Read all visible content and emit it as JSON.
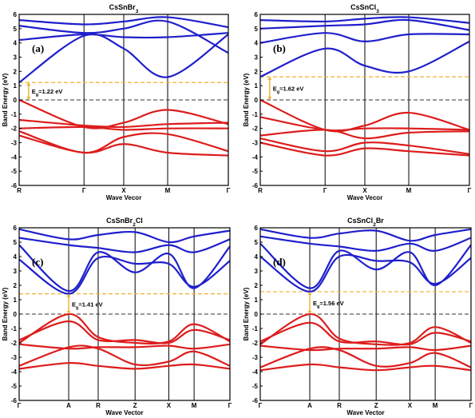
{
  "chart_data": [
    {
      "type": "line",
      "title": "CsSnBr3",
      "panel_label": "(a)",
      "xlabel": "Wave Vecor",
      "ylabel": "Band Energy (eV)",
      "ylim": [
        -6,
        6
      ],
      "yticks": [
        -6,
        -5,
        -4,
        -3,
        -2,
        -1,
        0,
        1,
        2,
        3,
        4,
        5,
        6
      ],
      "kpoints": [
        "R",
        "Γ",
        "X",
        "M",
        "Γ"
      ],
      "kpos": [
        0,
        0.31,
        0.5,
        0.71,
        1
      ],
      "fermi_level": 0,
      "cbm_level": 1.22,
      "gap_label": "Eg=1.22 eV",
      "colors": {
        "conduction": "#1f1fcc",
        "valence": "#dd1c1c",
        "gap_line": "#f0b030"
      },
      "series": [
        {
          "band": "conduction",
          "x": [
            0,
            0.31,
            0.5,
            0.71,
            1
          ],
          "y": [
            1.22,
            4.5,
            3.6,
            1.6,
            4.6
          ]
        },
        {
          "band": "conduction",
          "x": [
            0,
            0.31,
            0.5,
            0.71,
            1
          ],
          "y": [
            4.2,
            4.6,
            4.4,
            4.4,
            4.7
          ]
        },
        {
          "band": "conduction",
          "x": [
            0,
            0.31,
            0.5,
            0.71,
            1
          ],
          "y": [
            5.2,
            4.7,
            5.0,
            5.5,
            3.3
          ]
        },
        {
          "band": "conduction",
          "x": [
            0,
            0.31,
            0.5,
            0.71,
            1
          ],
          "y": [
            5.6,
            5.3,
            5.5,
            5.8,
            5.1
          ]
        },
        {
          "band": "valence",
          "x": [
            0,
            0.31,
            0.5,
            0.71,
            1
          ],
          "y": [
            0.0,
            -1.9,
            -1.6,
            -0.7,
            -1.7
          ]
        },
        {
          "band": "valence",
          "x": [
            0,
            0.31,
            0.5,
            0.71,
            1
          ],
          "y": [
            -1.4,
            -1.8,
            -1.9,
            -1.7,
            -1.6
          ]
        },
        {
          "band": "valence",
          "x": [
            0,
            0.31,
            0.5,
            0.71,
            1
          ],
          "y": [
            -2.0,
            -1.9,
            -2.1,
            -2.0,
            -2.0
          ]
        },
        {
          "band": "valence",
          "x": [
            0,
            0.31,
            0.5,
            0.71,
            1
          ],
          "y": [
            -2.2,
            -3.7,
            -2.6,
            -2.4,
            -3.6
          ]
        },
        {
          "band": "valence",
          "x": [
            0,
            0.31,
            0.5,
            0.71,
            1
          ],
          "y": [
            -2.5,
            -3.7,
            -3.1,
            -3.7,
            -3.9
          ]
        }
      ]
    },
    {
      "type": "line",
      "title": "CsSnCl3",
      "panel_label": "(b)",
      "xlabel": "Wave Vecor",
      "ylabel": "Band Energy (eV)",
      "ylim": [
        -6,
        6
      ],
      "yticks": [
        -6,
        -5,
        -4,
        -3,
        -2,
        -1,
        0,
        1,
        2,
        3,
        4,
        5,
        6
      ],
      "kpoints": [
        "R",
        "Γ",
        "X",
        "M",
        "Γ"
      ],
      "kpos": [
        0,
        0.31,
        0.5,
        0.71,
        1
      ],
      "fermi_level": 0,
      "cbm_level": 1.62,
      "gap_label": "Eg=1.62 eV",
      "colors": {
        "conduction": "#1f1fcc",
        "valence": "#dd1c1c",
        "gap_line": "#f0b030"
      },
      "series": [
        {
          "band": "conduction",
          "x": [
            0,
            0.31,
            0.5,
            0.71,
            1
          ],
          "y": [
            1.62,
            3.6,
            2.4,
            2.0,
            4.1
          ]
        },
        {
          "band": "conduction",
          "x": [
            0,
            0.31,
            0.5,
            0.71,
            1
          ],
          "y": [
            4.0,
            4.7,
            4.1,
            4.6,
            4.6
          ]
        },
        {
          "band": "conduction",
          "x": [
            0,
            0.31,
            0.5,
            0.71,
            1
          ],
          "y": [
            5.0,
            5.2,
            5.3,
            5.6,
            4.9
          ]
        },
        {
          "band": "conduction",
          "x": [
            0,
            0.31,
            0.5,
            0.71,
            1
          ],
          "y": [
            5.6,
            5.5,
            5.7,
            5.8,
            5.4
          ]
        },
        {
          "band": "valence",
          "x": [
            0,
            0.31,
            0.5,
            0.71,
            1
          ],
          "y": [
            0.0,
            -2.1,
            -1.8,
            -0.9,
            -2.1
          ]
        },
        {
          "band": "valence",
          "x": [
            0,
            0.31,
            0.5,
            0.71,
            1
          ],
          "y": [
            -1.2,
            -2.1,
            -2.0,
            -2.0,
            -2.1
          ]
        },
        {
          "band": "valence",
          "x": [
            0,
            0.31,
            0.5,
            0.71,
            1
          ],
          "y": [
            -2.5,
            -2.1,
            -2.7,
            -2.3,
            -2.2
          ]
        },
        {
          "band": "valence",
          "x": [
            0,
            0.31,
            0.5,
            0.71,
            1
          ],
          "y": [
            -2.7,
            -3.6,
            -3.0,
            -3.2,
            -3.8
          ]
        },
        {
          "band": "valence",
          "x": [
            0,
            0.31,
            0.5,
            0.71,
            1
          ],
          "y": [
            -3.0,
            -3.9,
            -3.4,
            -3.6,
            -3.9
          ]
        }
      ]
    },
    {
      "type": "line",
      "title": "CsSnBr2Cl",
      "panel_label": "(c)",
      "xlabel": "Wave Vector",
      "ylabel": "Band Energy (eV)",
      "ylim": [
        -6,
        6
      ],
      "yticks": [
        -6,
        -5,
        -4,
        -3,
        -2,
        -1,
        0,
        1,
        2,
        3,
        4,
        5,
        6
      ],
      "kpoints": [
        "Γ",
        "A",
        "R",
        "Z",
        "X",
        "M",
        "Γ"
      ],
      "kpos": [
        0,
        0.235,
        0.375,
        0.55,
        0.71,
        0.83,
        1
      ],
      "fermi_level": 0,
      "cbm_level": 1.41,
      "gap_label": "Eg=1.41 eV",
      "colors": {
        "conduction": "#1f1fcc",
        "valence": "#dd1c1c",
        "gap_line": "#f0b030"
      },
      "series": [
        {
          "band": "conduction",
          "x": [
            0,
            0.235,
            0.375,
            0.55,
            0.71,
            0.83,
            1
          ],
          "y": [
            3.8,
            1.41,
            3.9,
            3.5,
            3.5,
            1.9,
            3.7
          ]
        },
        {
          "band": "conduction",
          "x": [
            0,
            0.235,
            0.375,
            0.55,
            0.71,
            0.83,
            1
          ],
          "y": [
            4.8,
            1.6,
            4.3,
            2.9,
            4.2,
            1.8,
            4.7
          ]
        },
        {
          "band": "conduction",
          "x": [
            0,
            0.235,
            0.375,
            0.55,
            0.71,
            0.83,
            1
          ],
          "y": [
            5.3,
            4.8,
            4.6,
            4.3,
            4.8,
            4.3,
            5.2
          ]
        },
        {
          "band": "conduction",
          "x": [
            0,
            0.235,
            0.375,
            0.55,
            0.71,
            0.83,
            1
          ],
          "y": [
            5.9,
            5.2,
            5.5,
            5.7,
            5.0,
            5.4,
            5.8
          ]
        },
        {
          "band": "valence",
          "x": [
            0,
            0.235,
            0.375,
            0.55,
            0.71,
            0.83,
            1
          ],
          "y": [
            -2.0,
            0.0,
            -1.6,
            -2.0,
            -1.9,
            -0.7,
            -1.9
          ]
        },
        {
          "band": "valence",
          "x": [
            0,
            0.235,
            0.375,
            0.55,
            0.71,
            0.83,
            1
          ],
          "y": [
            -1.8,
            -0.5,
            -1.8,
            -1.8,
            -2.0,
            -1.1,
            -1.8
          ]
        },
        {
          "band": "valence",
          "x": [
            0,
            0.235,
            0.375,
            0.55,
            0.71,
            0.83,
            1
          ],
          "y": [
            -2.1,
            -2.4,
            -2.3,
            -2.3,
            -2.2,
            -2.4,
            -2.1
          ]
        },
        {
          "band": "valence",
          "x": [
            0,
            0.235,
            0.375,
            0.55,
            0.71,
            0.83,
            1
          ],
          "y": [
            -3.6,
            -2.3,
            -2.4,
            -3.5,
            -3.3,
            -2.6,
            -3.6
          ]
        },
        {
          "band": "valence",
          "x": [
            0,
            0.235,
            0.375,
            0.55,
            0.71,
            0.83,
            1
          ],
          "y": [
            -3.8,
            -3.4,
            -3.6,
            -3.8,
            -3.6,
            -3.5,
            -3.8
          ]
        }
      ]
    },
    {
      "type": "line",
      "title": "CsSnCl2Br",
      "panel_label": "(d)",
      "xlabel": "Wave Vector",
      "ylabel": "Band Energy (eV)",
      "ylim": [
        -6,
        6
      ],
      "yticks": [
        -6,
        -5,
        -4,
        -3,
        -2,
        -1,
        0,
        1,
        2,
        3,
        4,
        5,
        6
      ],
      "kpoints": [
        "Γ",
        "A",
        "R",
        "Z",
        "X",
        "M",
        "Γ"
      ],
      "kpos": [
        0,
        0.235,
        0.375,
        0.55,
        0.71,
        0.83,
        1
      ],
      "fermi_level": 0,
      "cbm_level": 1.56,
      "gap_label": "Eg=1.56 eV",
      "colors": {
        "conduction": "#1f1fcc",
        "valence": "#dd1c1c",
        "gap_line": "#f0b030"
      },
      "series": [
        {
          "band": "conduction",
          "x": [
            0,
            0.235,
            0.375,
            0.55,
            0.71,
            0.83,
            1
          ],
          "y": [
            4.0,
            1.56,
            4.0,
            3.7,
            3.6,
            2.1,
            3.9
          ]
        },
        {
          "band": "conduction",
          "x": [
            0,
            0.235,
            0.375,
            0.55,
            0.71,
            0.83,
            1
          ],
          "y": [
            4.9,
            1.8,
            4.4,
            3.1,
            4.3,
            2.0,
            4.8
          ]
        },
        {
          "band": "conduction",
          "x": [
            0,
            0.235,
            0.375,
            0.55,
            0.71,
            0.83,
            1
          ],
          "y": [
            5.4,
            4.9,
            4.7,
            4.4,
            4.9,
            4.4,
            5.3
          ]
        },
        {
          "band": "conduction",
          "x": [
            0,
            0.235,
            0.375,
            0.55,
            0.71,
            0.83,
            1
          ],
          "y": [
            5.9,
            5.3,
            5.6,
            5.8,
            5.1,
            5.5,
            5.9
          ]
        },
        {
          "band": "valence",
          "x": [
            0,
            0.235,
            0.375,
            0.55,
            0.71,
            0.83,
            1
          ],
          "y": [
            -2.1,
            0.0,
            -1.7,
            -2.1,
            -2.0,
            -0.9,
            -2.0
          ]
        },
        {
          "band": "valence",
          "x": [
            0,
            0.235,
            0.375,
            0.55,
            0.71,
            0.83,
            1
          ],
          "y": [
            -1.9,
            -0.6,
            -1.9,
            -1.9,
            -2.1,
            -1.3,
            -1.9
          ]
        },
        {
          "band": "valence",
          "x": [
            0,
            0.235,
            0.375,
            0.55,
            0.71,
            0.83,
            1
          ],
          "y": [
            -2.2,
            -2.5,
            -2.4,
            -2.4,
            -2.3,
            -2.5,
            -2.2
          ]
        },
        {
          "band": "valence",
          "x": [
            0,
            0.235,
            0.375,
            0.55,
            0.71,
            0.83,
            1
          ],
          "y": [
            -3.7,
            -2.4,
            -2.5,
            -3.6,
            -3.4,
            -2.7,
            -3.7
          ]
        },
        {
          "band": "valence",
          "x": [
            0,
            0.235,
            0.375,
            0.55,
            0.71,
            0.83,
            1
          ],
          "y": [
            -3.9,
            -3.5,
            -3.7,
            -3.9,
            -3.7,
            -3.6,
            -3.9
          ]
        }
      ]
    }
  ]
}
